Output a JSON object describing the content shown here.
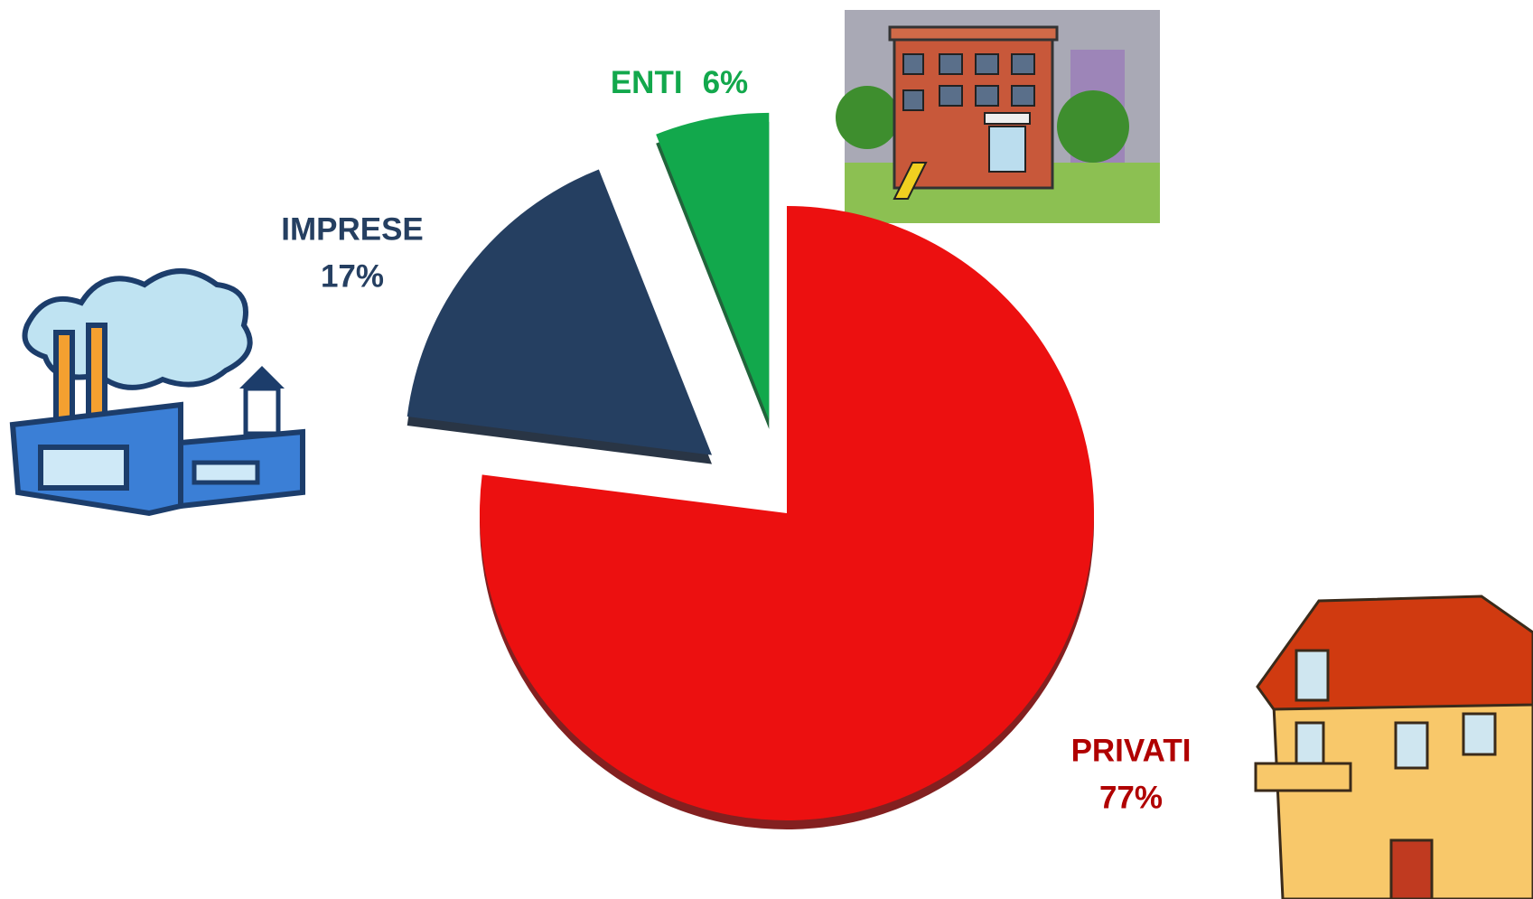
{
  "chart_data": {
    "type": "pie",
    "categories": [
      "PRIVATI",
      "IMPRESE",
      "ENTI"
    ],
    "values": [
      77,
      17,
      6
    ],
    "value_labels": [
      "77%",
      "17%",
      "6%"
    ],
    "colors": [
      "#ec1010",
      "#253f61",
      "#12a84c"
    ],
    "label_colors": [
      "#b00000",
      "#253f61",
      "#12a84c"
    ]
  }
}
